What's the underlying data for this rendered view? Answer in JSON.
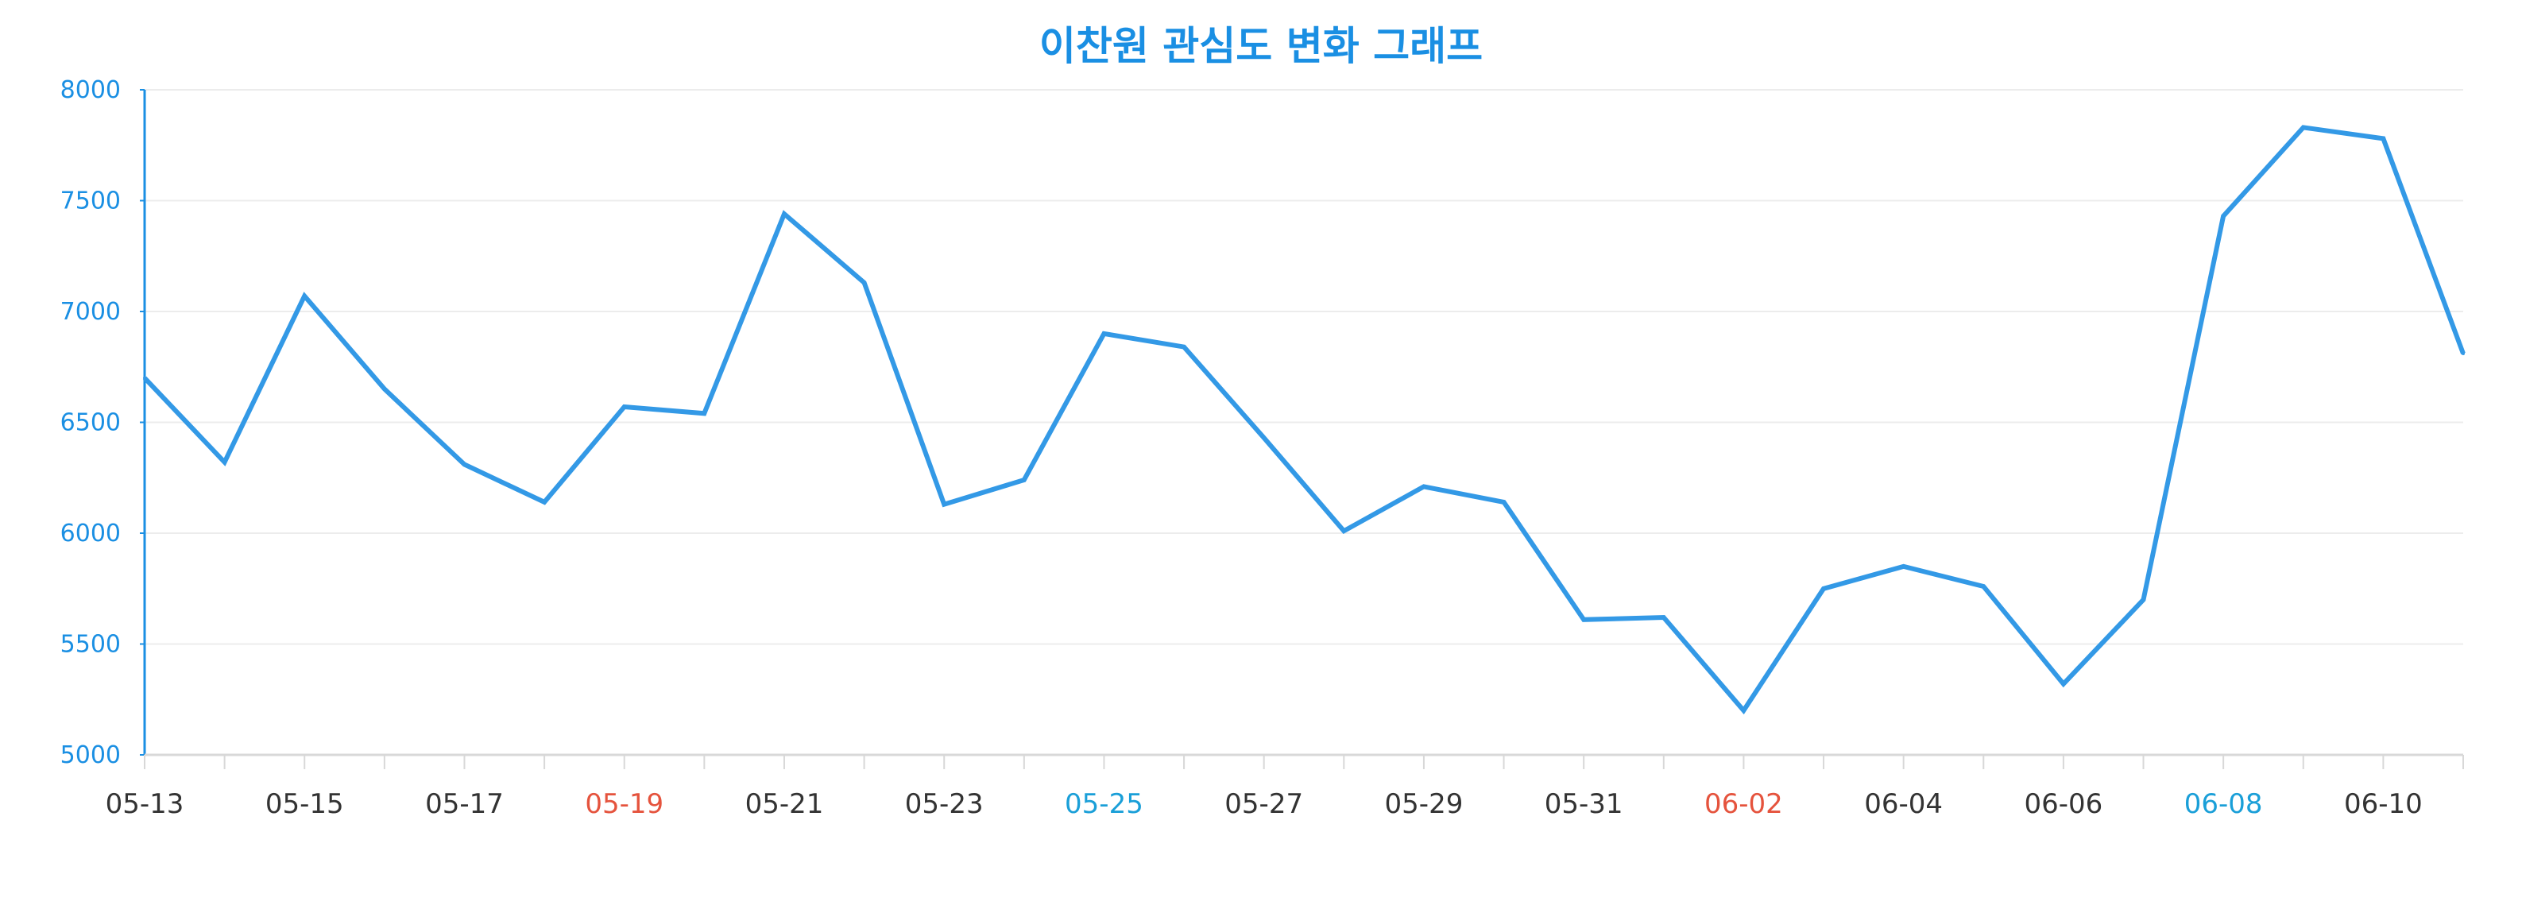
{
  "colors": {
    "accent": "#1a8fe3",
    "line": "#3399e6",
    "grid": "#ececec",
    "axis": "#1a8fe3",
    "xaxis": "#d8d8d8",
    "tick_default": "#333333",
    "tick_saturday": "#1a9fd8",
    "tick_holiday": "#e5533d"
  },
  "chart_data": {
    "type": "line",
    "title": "이찬원 관심도 변화 그래프",
    "xlabel": "",
    "ylabel": "",
    "ylim": [
      5000,
      8000
    ],
    "yticks": [
      5000,
      5500,
      6000,
      6500,
      7000,
      7500,
      8000
    ],
    "grid": true,
    "legend": "none",
    "x": [
      "05-13",
      "05-14",
      "05-15",
      "05-16",
      "05-17",
      "05-18",
      "05-19",
      "05-20",
      "05-21",
      "05-22",
      "05-23",
      "05-24",
      "05-25",
      "05-26",
      "05-27",
      "05-28",
      "05-29",
      "05-30",
      "05-31",
      "06-01",
      "06-02",
      "06-03",
      "06-04",
      "06-05",
      "06-06",
      "06-07",
      "06-08",
      "06-09",
      "06-10",
      "06-11"
    ],
    "xtick_labels": [
      {
        "label": "05-13",
        "color_key": "tick_default"
      },
      {
        "label": "05-15",
        "color_key": "tick_default"
      },
      {
        "label": "05-17",
        "color_key": "tick_default"
      },
      {
        "label": "05-19",
        "color_key": "tick_holiday"
      },
      {
        "label": "05-21",
        "color_key": "tick_default"
      },
      {
        "label": "05-23",
        "color_key": "tick_default"
      },
      {
        "label": "05-25",
        "color_key": "tick_saturday"
      },
      {
        "label": "05-27",
        "color_key": "tick_default"
      },
      {
        "label": "05-29",
        "color_key": "tick_default"
      },
      {
        "label": "05-31",
        "color_key": "tick_default"
      },
      {
        "label": "06-02",
        "color_key": "tick_holiday"
      },
      {
        "label": "06-04",
        "color_key": "tick_default"
      },
      {
        "label": "06-06",
        "color_key": "tick_default"
      },
      {
        "label": "06-08",
        "color_key": "tick_saturday"
      },
      {
        "label": "06-10",
        "color_key": "tick_default"
      }
    ],
    "series": [
      {
        "values": [
          6700,
          6320,
          7070,
          6650,
          6310,
          6140,
          6570,
          6540,
          7440,
          7130,
          6130,
          6240,
          6900,
          6840,
          6430,
          6010,
          6210,
          6140,
          5610,
          5620,
          5200,
          5750,
          5850,
          5760,
          5320,
          5700,
          7430,
          7830,
          7780,
          6810
        ]
      }
    ]
  }
}
